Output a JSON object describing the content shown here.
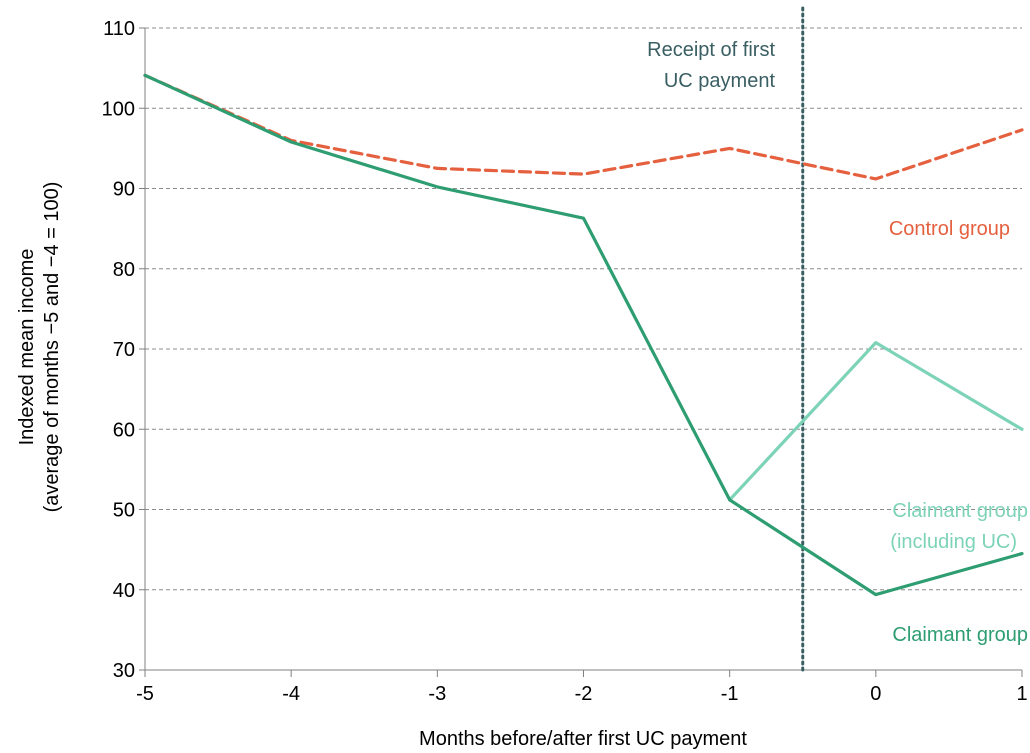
{
  "chart_data": {
    "type": "line",
    "title": "",
    "xlabel": "Months before/after first UC payment",
    "ylabel_line1": "Indexed mean income",
    "ylabel_line2": "(average of months −5 and −4 = 100)",
    "x": [
      -5,
      -4,
      -3,
      -2,
      -1,
      0,
      1
    ],
    "xlim": [
      -5,
      1
    ],
    "ylim": [
      30,
      110
    ],
    "y_ticks": [
      30,
      40,
      50,
      60,
      70,
      80,
      90,
      100,
      110
    ],
    "x_tick_labels": [
      "-5",
      "-4",
      "-3",
      "-2",
      "-1",
      "0",
      "1"
    ],
    "grid": "horizontal dashed",
    "series": [
      {
        "name": "Control group",
        "style": "dashed",
        "color": "#E5603F",
        "x": [
          -5,
          -4,
          -3,
          -2,
          -1,
          0,
          1
        ],
        "values": [
          104.1,
          96.0,
          92.5,
          91.8,
          95.0,
          91.2,
          97.3
        ]
      },
      {
        "name": "Claimant group",
        "style": "solid",
        "color": "#2E9E72",
        "x": [
          -5,
          -4,
          -3,
          -2,
          -1,
          0,
          1
        ],
        "values": [
          104.1,
          95.8,
          90.2,
          86.3,
          51.2,
          39.4,
          44.5
        ]
      },
      {
        "name": "Claimant group (including UC)",
        "style": "solid",
        "color": "#7DD3B8",
        "x": [
          -1,
          0,
          1
        ],
        "values": [
          51.2,
          70.8,
          60.0
        ]
      }
    ],
    "reference_line": {
      "x": -0.5,
      "style": "dotted",
      "color": "#3A5F63",
      "label_line1": "Receipt of first",
      "label_line2": "UC payment"
    },
    "annotations": [
      {
        "text_line1": "Control group",
        "color": "#E5603F"
      },
      {
        "text_line1": "Claimant group",
        "text_line2": "(including UC)",
        "color": "#7DD3B8"
      },
      {
        "text_line1": "Claimant group",
        "color": "#2E9E72"
      }
    ]
  }
}
